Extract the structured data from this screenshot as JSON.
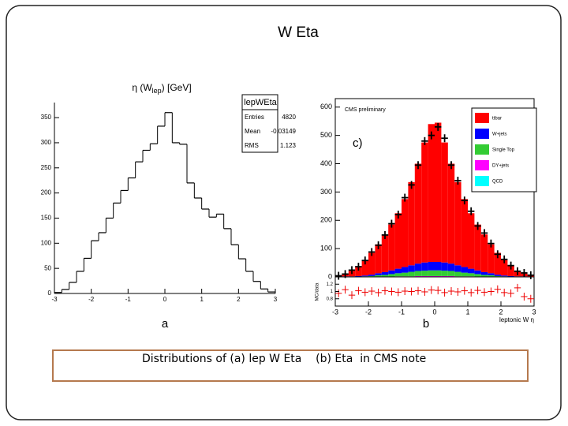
{
  "slide": {
    "title": "W Eta",
    "labels": [
      "a",
      "b"
    ],
    "caption": "Distributions of (a) lep W Eta    (b) Eta  in CMS note"
  },
  "chart_data": [
    {
      "type": "histogram",
      "title": [
        "η (W",
        "lep",
        ") [GeV]"
      ],
      "bins": [
        -3,
        -2.8,
        -2.6,
        -2.4,
        -2.2,
        -2,
        -1.8,
        -1.6,
        -1.4,
        -1.2,
        -1,
        -0.8,
        -0.6,
        -0.4,
        -0.2,
        0,
        0.2,
        0.4,
        0.6,
        0.8,
        1,
        1.2,
        1.4,
        1.6,
        1.8,
        2,
        2.2,
        2.4,
        2.6,
        2.8,
        3
      ],
      "values": [
        2,
        8,
        22,
        44,
        70,
        105,
        121,
        150,
        180,
        205,
        230,
        262,
        285,
        298,
        333,
        360,
        300,
        297,
        220,
        190,
        168,
        152,
        158,
        129,
        97,
        69,
        44,
        24,
        9,
        3
      ],
      "color": "#000000",
      "xlim": [
        -3,
        3
      ],
      "xticks": [
        -3,
        -2,
        -1,
        0,
        1,
        2,
        3
      ],
      "ylim": [
        0,
        380
      ],
      "yticks": [
        0,
        50,
        100,
        150,
        200,
        250,
        300,
        350
      ],
      "stats": {
        "title": "lepWEta",
        "rows": [
          [
            "Entries",
            "4820"
          ],
          [
            "Mean",
            "-0.03149"
          ],
          [
            "RMS",
            "1.123"
          ]
        ]
      }
    },
    {
      "type": "stacked_histogram",
      "label": "CMS preliminary",
      "panel_label": "c)",
      "xlabel": "leptonic W η",
      "bins": [
        -3,
        -2.8,
        -2.6,
        -2.4,
        -2.2,
        -2,
        -1.8,
        -1.6,
        -1.4,
        -1.2,
        -1,
        -0.8,
        -0.6,
        -0.4,
        -0.2,
        0,
        0.2,
        0.4,
        0.6,
        0.8,
        1,
        1.2,
        1.4,
        1.6,
        1.8,
        2,
        2.2,
        2.4,
        2.6,
        2.8,
        3
      ],
      "series": [
        {
          "name": "ttbar",
          "color": "#ff0000",
          "values": [
            5,
            10,
            20,
            35,
            55,
            77,
            102,
            133,
            162,
            196,
            240,
            294,
            353,
            424,
            487,
            492,
            424,
            353,
            294,
            240,
            196,
            162,
            133,
            102,
            77,
            55,
            35,
            20,
            10,
            5
          ]
        },
        {
          "name": "W+jets",
          "color": "#0000ff",
          "values": [
            0,
            1,
            1,
            2,
            3,
            5,
            7,
            10,
            13,
            16,
            20,
            23,
            26,
            29,
            30,
            30,
            29,
            26,
            23,
            20,
            16,
            13,
            10,
            7,
            5,
            3,
            2,
            1,
            1,
            0
          ]
        },
        {
          "name": "Single Top",
          "color": "#33cc33",
          "values": [
            0,
            1,
            1,
            1,
            2,
            3,
            5,
            6,
            9,
            11,
            13,
            16,
            18,
            19,
            20,
            20,
            19,
            18,
            16,
            13,
            11,
            9,
            6,
            5,
            3,
            2,
            1,
            1,
            1,
            0
          ]
        },
        {
          "name": "DY+jets",
          "color": "#ff00ff",
          "values": [
            0,
            0,
            0,
            0,
            0,
            0,
            1,
            1,
            1,
            2,
            2,
            2,
            3,
            3,
            3,
            3,
            3,
            3,
            2,
            2,
            2,
            1,
            1,
            1,
            0,
            0,
            0,
            0,
            0,
            0
          ]
        },
        {
          "name": "QCD",
          "color": "#00ffff",
          "values": [
            0,
            0,
            0,
            0,
            0,
            0,
            0,
            0,
            0,
            0,
            0,
            0,
            0,
            0,
            0,
            0,
            0,
            0,
            0,
            0,
            0,
            0,
            0,
            0,
            0,
            0,
            0,
            0,
            0,
            0
          ]
        }
      ],
      "data": {
        "values": [
          4,
          10,
          24,
          36,
          58,
          88,
          112,
          148,
          188,
          220,
          280,
          325,
          395,
          480,
          500,
          530,
          490,
          395,
          340,
          270,
          232,
          180,
          155,
          118,
          80,
          62,
          40,
          20,
          14,
          6
        ]
      },
      "xlim": [
        -3,
        3
      ],
      "xticks": [
        -3,
        -2,
        -1,
        0,
        1,
        2,
        3
      ],
      "ylim": [
        0,
        630
      ],
      "yticks": [
        0,
        100,
        200,
        300,
        400,
        500,
        600
      ],
      "ratio": {
        "ylabel": "MC/data",
        "ylim": [
          0.6,
          1.4
        ],
        "yticks": [
          0.8,
          1,
          1.2
        ],
        "values": [
          0.95,
          1.05,
          0.9,
          1.02,
          0.98,
          1.01,
          0.97,
          1.02,
          1.0,
          0.98,
          1.01,
          1.0,
          1.02,
          0.99,
          1.04,
          1.03,
          0.97,
          1.01,
          0.99,
          1.02,
          0.97,
          1.03,
          0.98,
          1.0,
          1.06,
          0.97,
          0.95,
          1.1,
          0.86,
          0.8
        ]
      }
    }
  ]
}
